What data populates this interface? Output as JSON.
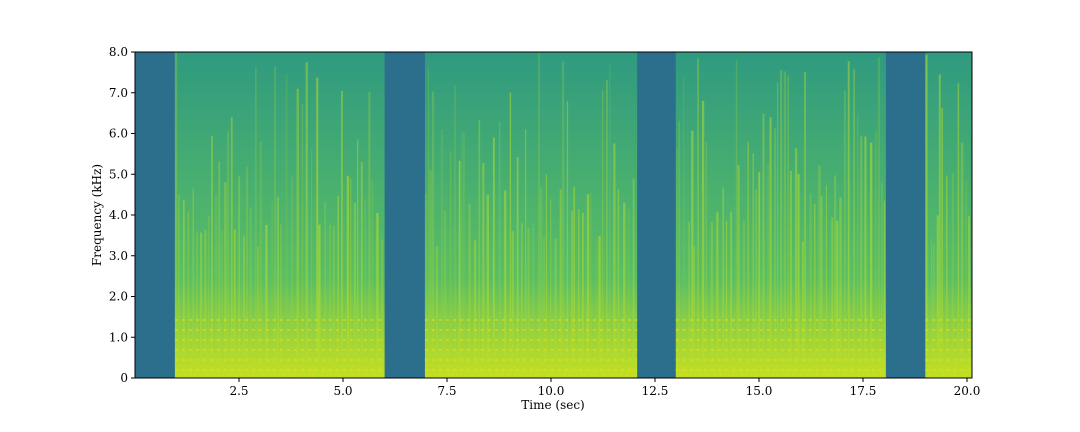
{
  "chart_data": {
    "type": "spectrogram",
    "xlabel": "Time (sec)",
    "ylabel": "Frequency (kHz)",
    "xlim": [
      0,
      20.12
    ],
    "ylim": [
      0,
      8
    ],
    "xticks": [
      2.5,
      {
        "value": 5,
        "label": "5.0"
      },
      7.5,
      {
        "value": 10,
        "label": "10.0"
      },
      12.5,
      {
        "value": 15,
        "label": "15.0"
      },
      17.5,
      {
        "value": 20,
        "label": "20.0"
      }
    ],
    "yticks": [
      0,
      {
        "value": 1,
        "label": "1.0"
      },
      {
        "value": 2,
        "label": "2.0"
      },
      {
        "value": 3,
        "label": "3.0"
      },
      {
        "value": 4,
        "label": "4.0"
      },
      {
        "value": 5,
        "label": "5.0"
      },
      {
        "value": 6,
        "label": "6.0"
      },
      {
        "value": 7,
        "label": "7.0"
      },
      {
        "value": 8,
        "label": "8.0"
      }
    ],
    "speech_segments": [
      [
        0.96,
        6.0
      ],
      [
        6.97,
        12.07
      ],
      [
        13.0,
        18.05
      ],
      [
        19.0,
        20.12
      ]
    ],
    "colors": {
      "silence": "#2c6f8c",
      "speech_low": "#c8e020",
      "speech_high": "#2f9a80",
      "streak": "#b5de2b"
    }
  }
}
